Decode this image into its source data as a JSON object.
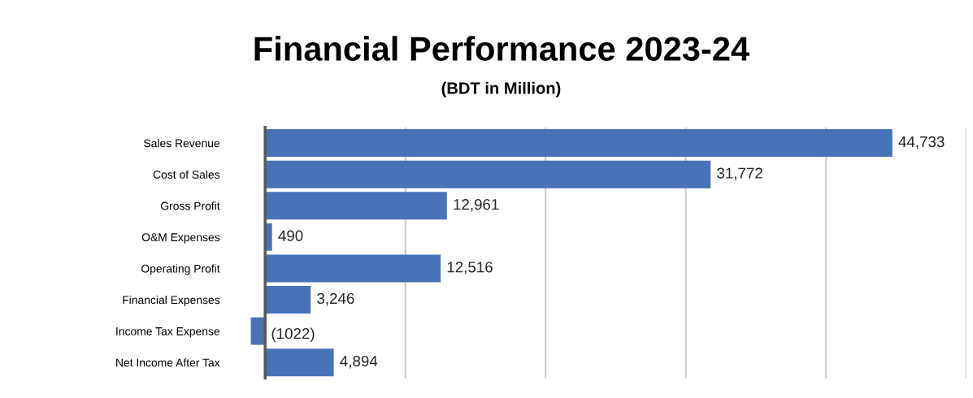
{
  "chart_data": {
    "type": "bar",
    "orientation": "horizontal",
    "title": "Financial Performance 2023-24",
    "subtitle": "(BDT in Million)",
    "categories": [
      "Sales Revenue",
      "Cost of Sales",
      "Gross Profit",
      "O&M Expenses",
      "Operating Profit",
      "Financial Expenses",
      "Income Tax Expense",
      "Net Income After Tax"
    ],
    "values": [
      44733,
      31772,
      12961,
      490,
      12516,
      3246,
      -1022,
      4894
    ],
    "value_labels": [
      "44,733",
      "31,772",
      "12,961",
      "490",
      "12,516",
      "3,246",
      "(1022)",
      "4,894"
    ],
    "color": "#4872b8",
    "xticks": [
      {
        "value": 10000,
        "label": null
      },
      {
        "value": 20000,
        "label": null
      },
      {
        "value": 30000,
        "label": null
      },
      {
        "value": 40000,
        "label": null
      },
      {
        "value": 50000,
        "label": null
      }
    ],
    "tick_labels": "y",
    "grid": "x"
  }
}
